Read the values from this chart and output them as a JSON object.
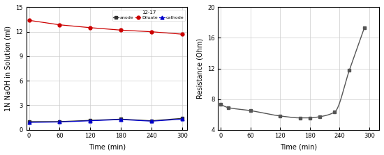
{
  "left": {
    "title": "12-17",
    "xlabel": "Time (min)",
    "ylabel": "1N NaOH in Solution (ml)",
    "xlim": [
      -5,
      310
    ],
    "ylim": [
      0,
      15
    ],
    "yticks": [
      0,
      3,
      6,
      9,
      12,
      15
    ],
    "xticks": [
      0,
      60,
      120,
      180,
      240,
      300
    ],
    "anode": {
      "x": [
        0,
        60,
        120,
        180,
        240,
        300
      ],
      "y": [
        1.0,
        1.0,
        1.15,
        1.3,
        1.1,
        1.4
      ],
      "color": "#333333",
      "marker": "s",
      "label": "anode"
    },
    "dilute": {
      "x": [
        0,
        60,
        120,
        180,
        240,
        300
      ],
      "y": [
        13.4,
        12.85,
        12.5,
        12.2,
        12.0,
        11.7
      ],
      "color": "#cc0000",
      "marker": "o",
      "label": "Diluate"
    },
    "cathode": {
      "x": [
        0,
        60,
        120,
        180,
        240,
        300
      ],
      "y": [
        0.9,
        0.95,
        1.1,
        1.25,
        1.05,
        1.3
      ],
      "color": "#0000cc",
      "marker": "^",
      "label": "cathode"
    }
  },
  "right": {
    "xlabel": "Time (min)",
    "ylabel": "Resistance (Ohm)",
    "xlim": [
      -5,
      320
    ],
    "ylim": [
      4,
      20
    ],
    "yticks": [
      4,
      8,
      12,
      16,
      20
    ],
    "xticks": [
      0,
      60,
      120,
      180,
      240,
      300
    ],
    "x": [
      0,
      15,
      60,
      120,
      160,
      180,
      200,
      230,
      260,
      290
    ],
    "y": [
      7.3,
      6.9,
      6.5,
      5.8,
      5.55,
      5.55,
      5.7,
      6.3,
      11.8,
      17.3
    ],
    "color": "#555555",
    "marker": "s"
  }
}
